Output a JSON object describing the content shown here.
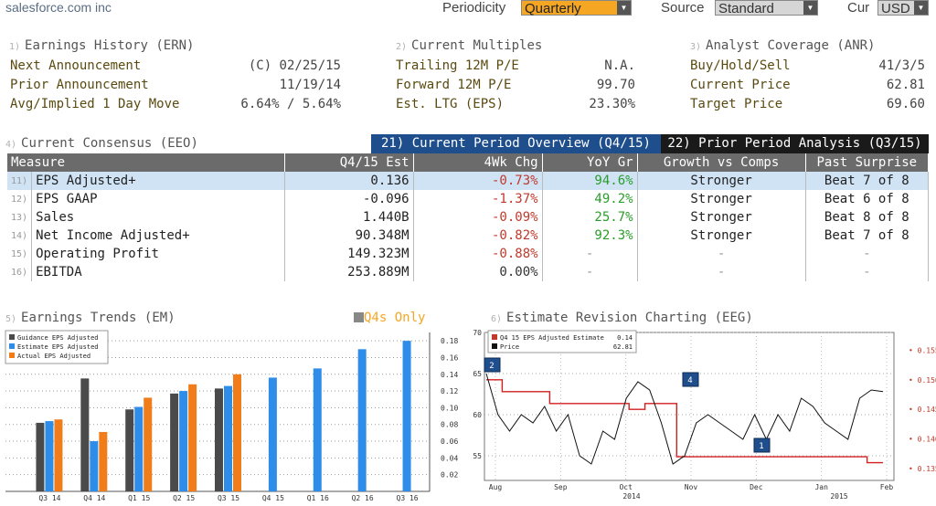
{
  "header": {
    "company": "salesforce.com inc",
    "periodicity_label": "Periodicity",
    "periodicity_value": "Quarterly",
    "source_label": "Source",
    "source_value": "Standard",
    "cur_label": "Cur",
    "cur_value": "USD"
  },
  "panels": {
    "earnings_history": {
      "num": "1)",
      "title": "Earnings History (ERN)",
      "rows": [
        {
          "label": "Next Announcement",
          "value": "(C)  02/25/15"
        },
        {
          "label": "Prior Announcement",
          "value": "11/19/14"
        },
        {
          "label": "Avg/Implied 1 Day Move",
          "value": "6.64% / 5.64%"
        }
      ]
    },
    "current_multiples": {
      "num": "2)",
      "title": "Current Multiples",
      "rows": [
        {
          "label": "Trailing 12M P/E",
          "value": "N.A."
        },
        {
          "label": "Forward 12M P/E",
          "value": "99.70"
        },
        {
          "label": "Est. LTG (EPS)",
          "value": "23.30%"
        }
      ]
    },
    "analyst_coverage": {
      "num": "3)",
      "title": "Analyst Coverage (ANR)",
      "rows": [
        {
          "label": "Buy/Hold/Sell",
          "value": "41/3/5"
        },
        {
          "label": "Current Price",
          "value": "62.81"
        },
        {
          "label": "Target Price",
          "value": "69.60"
        }
      ]
    }
  },
  "consensus": {
    "num": "4)",
    "title": "Current Consensus (EEO)",
    "tab_current": "21) Current Period Overview (Q4/15)",
    "tab_prior": "22) Prior Period Analysis (Q3/15)",
    "columns": [
      "Measure",
      "Q4/15 Est",
      "4Wk Chg",
      "YoY Gr",
      "Growth vs Comps",
      "Past Surprise"
    ],
    "rows": [
      {
        "num": "11)",
        "measure": "EPS Adjusted+",
        "est": "0.136",
        "chg": "-0.73%",
        "yoy": "94.6%",
        "growth": "Stronger",
        "surprise": "Beat 7 of 8"
      },
      {
        "num": "12)",
        "measure": "EPS GAAP",
        "est": "-0.096",
        "chg": "-1.37%",
        "yoy": "49.2%",
        "growth": "Stronger",
        "surprise": "Beat 6 of 8"
      },
      {
        "num": "13)",
        "measure": "Sales",
        "est": "1.440B",
        "chg": "-0.09%",
        "yoy": "25.7%",
        "growth": "Stronger",
        "surprise": "Beat 8 of 8"
      },
      {
        "num": "14)",
        "measure": "Net Income Adjusted+",
        "est": "90.348M",
        "chg": "-0.82%",
        "yoy": "92.3%",
        "growth": "Stronger",
        "surprise": "Beat 7 of 8"
      },
      {
        "num": "15)",
        "measure": "Operating Profit",
        "est": "149.323M",
        "chg": "-0.88%",
        "yoy": "-",
        "growth": "-",
        "surprise": "-"
      },
      {
        "num": "16)",
        "measure": "EBITDA",
        "est": "253.889M",
        "chg": "0.00%",
        "yoy": "-",
        "growth": "-",
        "surprise": "-"
      }
    ]
  },
  "trends": {
    "num": "5)",
    "title": "Earnings Trends (EM)",
    "q4_label": "Q4s Only"
  },
  "revision": {
    "num": "6)",
    "title": "Estimate Revision Charting (EEG)"
  },
  "chart_data": [
    {
      "type": "bar",
      "categories": [
        "Q3 14",
        "Q4 14",
        "Q1 15",
        "Q2 15",
        "Q3 15",
        "Q4 15",
        "Q1 16",
        "Q2 16",
        "Q3 16"
      ],
      "series": [
        {
          "name": "Guidance EPS Adjusted",
          "color": "#4a4a4a",
          "values": [
            0.082,
            0.135,
            0.098,
            0.117,
            0.123,
            null,
            null,
            null,
            null
          ]
        },
        {
          "name": "Estimate EPS Adjusted",
          "color": "#2e8de8",
          "values": [
            0.084,
            0.06,
            0.101,
            0.12,
            0.126,
            0.136,
            0.147,
            0.17,
            0.18
          ]
        },
        {
          "name": "Actual EPS Adjusted",
          "color": "#f07d1a",
          "values": [
            0.086,
            0.071,
            0.112,
            0.128,
            0.14,
            null,
            null,
            null,
            null
          ]
        }
      ],
      "ylim": [
        0,
        0.19
      ],
      "yticks": [
        "0.02",
        "0.04",
        "0.06",
        "0.08",
        "0.10",
        "0.12",
        "0.14",
        "0.16",
        "0.18"
      ],
      "grid": true,
      "legend": "top-left"
    },
    {
      "type": "line",
      "x_ticks": [
        "Aug",
        "Sep",
        "Oct",
        "Nov",
        "Dec",
        "Jan",
        "Feb"
      ],
      "year_labels": [
        "2014",
        "2015"
      ],
      "left_ticks": [
        "55",
        "60",
        "65",
        "70"
      ],
      "right_ticks": [
        "0.135",
        "0.140",
        "0.145",
        "0.150",
        "0.155"
      ],
      "left_ylim": [
        52,
        70
      ],
      "right_ylim": [
        0.133,
        0.158
      ],
      "legend": [
        {
          "label": "Q4 15 EPS Adjusted Estimate",
          "value": "0.14",
          "color": "#c0392b"
        },
        {
          "label": "Price",
          "value": "62.81",
          "color": "#111111"
        }
      ],
      "estimate_series": [
        0.15,
        0.148,
        0.148,
        0.148,
        0.146,
        0.146,
        0.146,
        0.146,
        0.146,
        0.145,
        0.146,
        0.146,
        0.137,
        0.137,
        0.137,
        0.137,
        0.137,
        0.137,
        0.137,
        0.137,
        0.137,
        0.137,
        0.137,
        0.137,
        0.136,
        0.136
      ],
      "price_series": [
        65,
        60,
        58,
        60,
        59,
        61,
        58,
        60,
        55,
        54,
        58,
        57,
        62,
        64,
        63,
        59,
        54,
        55,
        59,
        60,
        59,
        58,
        57,
        60,
        57,
        60,
        58,
        62,
        61,
        59,
        58,
        57,
        62,
        63,
        62.8
      ],
      "markers": [
        "2",
        "4",
        "1"
      ],
      "grid": true
    }
  ]
}
